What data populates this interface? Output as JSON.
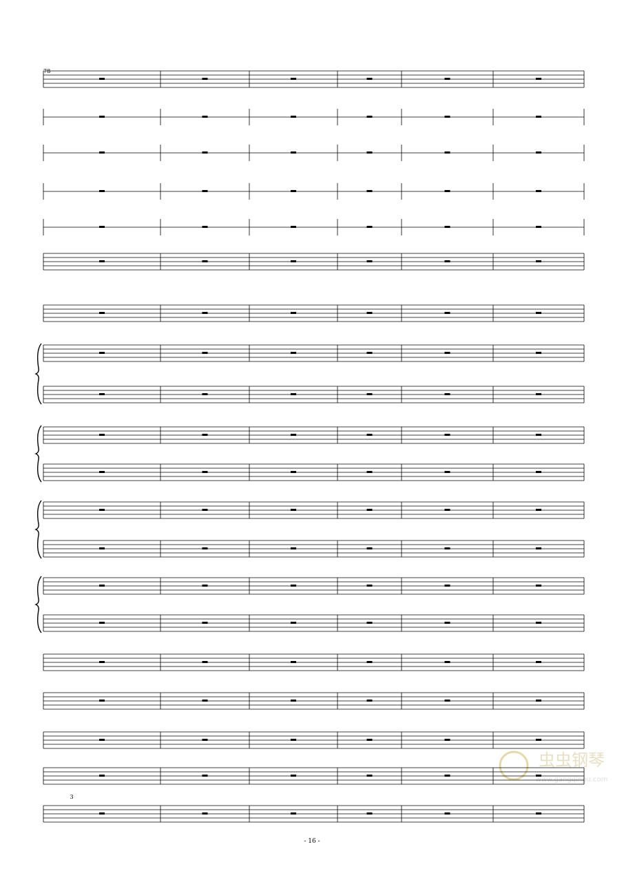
{
  "measure_number": "78",
  "triplet": "3",
  "page_number": "- 16 -",
  "watermark": {
    "brand": "虫虫钢琴",
    "url": "www.gangqinpu.com"
  }
}
